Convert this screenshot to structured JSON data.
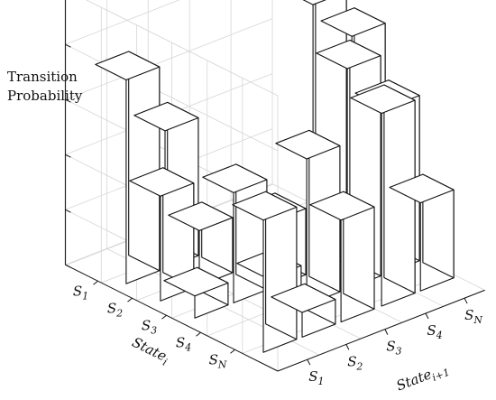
{
  "chart_data": {
    "type": "bar3d",
    "zlabel_lines": [
      "Transition",
      "Probability"
    ],
    "row_axis": {
      "title": "State",
      "title_sub": "i",
      "ticks": [
        {
          "base": "S",
          "sub": "1"
        },
        {
          "base": "S",
          "sub": "2"
        },
        {
          "base": "S",
          "sub": "3"
        },
        {
          "base": "S",
          "sub": "4"
        },
        {
          "base": "S",
          "sub": "N"
        }
      ]
    },
    "col_axis": {
      "title": "State",
      "title_sub": "i+1",
      "ticks": [
        {
          "base": "S",
          "sub": "1"
        },
        {
          "base": "S",
          "sub": "2"
        },
        {
          "base": "S",
          "sub": "3"
        },
        {
          "base": "S",
          "sub": "4"
        },
        {
          "base": "S",
          "sub": "N"
        }
      ]
    },
    "zlim": [
      0,
      1
    ],
    "grid": true,
    "bars": [
      {
        "row": "S1",
        "col": "S1",
        "value": 0.74
      },
      {
        "row": "S1",
        "col": "S2",
        "value": 0.5
      },
      {
        "row": "S2",
        "col": "S1",
        "value": 0.38
      },
      {
        "row": "S2",
        "col": "S2",
        "value": 0.2
      },
      {
        "row": "S3",
        "col": "S1",
        "value": 0.08
      },
      {
        "row": "S3",
        "col": "S2",
        "value": 0.4
      },
      {
        "row": "S3",
        "col": "S3",
        "value": 0.24
      },
      {
        "row": "S3",
        "col": "S4",
        "value": 0.97
      },
      {
        "row": "S3",
        "col": "S5",
        "value": 0.8
      },
      {
        "row": "S4",
        "col": "S2",
        "value": 0.15
      },
      {
        "row": "S4",
        "col": "S3",
        "value": 0.53
      },
      {
        "row": "S4",
        "col": "S4",
        "value": 0.8
      },
      {
        "row": "S4",
        "col": "S5",
        "value": 0.6
      },
      {
        "row": "SN",
        "col": "S1",
        "value": 0.48
      },
      {
        "row": "SN",
        "col": "S2",
        "value": 0.09
      },
      {
        "row": "SN",
        "col": "S3",
        "value": 0.37
      },
      {
        "row": "SN",
        "col": "S4",
        "value": 0.7
      },
      {
        "row": "SN",
        "col": "S5",
        "value": 0.32
      }
    ]
  }
}
